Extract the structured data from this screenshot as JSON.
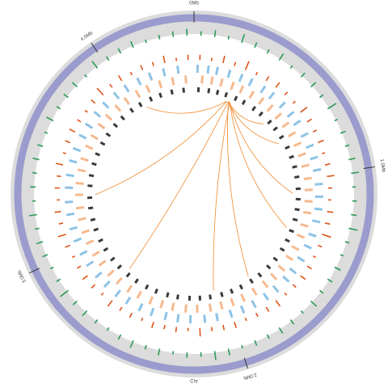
{
  "chart_data": {
    "type": "circos",
    "axis_label": "Chr",
    "xlim": [
      0,
      4.42
    ],
    "xticks": [
      {
        "value": 0,
        "label": "0Mb"
      },
      {
        "value": 1,
        "label": "1.0Mb"
      },
      {
        "value": 2,
        "label": "2.0Mb"
      },
      {
        "value": 3,
        "label": "3.0Mb"
      },
      {
        "value": 4,
        "label": "4.0Mb"
      }
    ],
    "ideogram_color": "#9b9ccd",
    "tracks": [
      {
        "kind": "histogram",
        "color": "#2e9a5a",
        "values": [
          0.4,
          0.6,
          0.3,
          0.8,
          0.5,
          0.4,
          0.7,
          0.3,
          0.5,
          0.6,
          0.4,
          0.9,
          0.3,
          0.5,
          0.4,
          0.6,
          0.7,
          0.3,
          0.4,
          0.5,
          0.8,
          0.4,
          0.3,
          0.6,
          0.5,
          0.4,
          0.7,
          0.3,
          0.5,
          0.6,
          0.4,
          0.5,
          0.3,
          0.6,
          0.8,
          0.4,
          0.5,
          0.3,
          0.6,
          0.4,
          0.7,
          0.5,
          0.3,
          0.4,
          0.6,
          0.5,
          0.9,
          0.4,
          0.3,
          0.5,
          0.6,
          0.4,
          0.7,
          0.3,
          0.5,
          0.4,
          0.6,
          0.5,
          0.3,
          0.7,
          0.4,
          0.5,
          0.6,
          0.3,
          0.8,
          0.4,
          0.5,
          0.6,
          0.3,
          0.4,
          0.5,
          0.6
        ]
      },
      {
        "kind": "histogram",
        "color": "#e0531a",
        "values": [
          0.5,
          0.3,
          0.7,
          0.4,
          0.9,
          0.3,
          0.5,
          0.6,
          0.4,
          0.3,
          0.8,
          0.5,
          0.4,
          0.6,
          0.3,
          0.5,
          0.7,
          0.4,
          0.3,
          0.6,
          0.5,
          0.9,
          0.4,
          0.3,
          0.5,
          0.6,
          0.4,
          0.3,
          0.7,
          0.5,
          0.4,
          0.3,
          0.6,
          0.5,
          0.4,
          0.8,
          0.3,
          0.5,
          0.4,
          0.6,
          0.3,
          0.5,
          0.4,
          0.7,
          0.3,
          0.5,
          0.6,
          0.4,
          0.3,
          0.5,
          0.8,
          0.4,
          0.6,
          0.3,
          0.5,
          0.4,
          0.7,
          0.3,
          0.5,
          0.6,
          0.4,
          0.3,
          0.5,
          0.9,
          0.4,
          0.6,
          0.3,
          0.5,
          0.4,
          0.7,
          0.3,
          0.5
        ]
      },
      {
        "kind": "tiles",
        "color": "#8ec3e6",
        "positions": [
          0.02,
          0.08,
          0.13,
          0.2,
          0.27,
          0.33,
          0.41,
          0.47,
          0.55,
          0.62,
          0.68,
          0.76,
          0.83,
          0.9,
          0.97,
          1.05,
          1.12,
          1.19,
          1.26,
          1.34,
          1.41,
          1.49,
          1.57,
          1.63,
          1.71,
          1.78,
          1.86,
          1.93,
          2.0,
          2.08,
          2.15,
          2.23,
          2.3,
          2.37,
          2.45,
          2.52,
          2.6,
          2.67,
          2.75,
          2.82,
          2.9,
          2.97,
          3.05,
          3.12,
          3.2,
          3.27,
          3.35,
          3.42,
          3.5,
          3.57,
          3.65,
          3.72,
          3.8,
          3.87,
          3.95,
          4.02,
          4.1,
          4.17,
          4.25,
          4.33
        ]
      },
      {
        "kind": "tiles",
        "color": "#f6b98e",
        "positions": [
          0.05,
          0.11,
          0.17,
          0.24,
          0.3,
          0.37,
          0.44,
          0.51,
          0.58,
          0.65,
          0.72,
          0.79,
          0.86,
          0.93,
          1.01,
          1.08,
          1.15,
          1.22,
          1.3,
          1.37,
          1.45,
          1.52,
          1.6,
          1.67,
          1.74,
          1.82,
          1.9,
          1.97,
          2.04,
          2.11,
          2.19,
          2.26,
          2.34,
          2.41,
          2.48,
          2.56,
          2.63,
          2.71,
          2.78,
          2.86,
          2.93,
          3.01,
          3.08,
          3.16,
          3.23,
          3.31,
          3.38,
          3.46,
          3.53,
          3.61,
          3.68,
          3.76,
          3.83,
          3.91,
          3.98,
          4.06,
          4.13,
          4.21,
          4.29,
          4.37
        ]
      },
      {
        "kind": "tiles",
        "color": "#3a3a3a",
        "positions": [
          0.03,
          0.1,
          0.16,
          0.22,
          0.29,
          0.35,
          0.43,
          0.49,
          0.57,
          0.63,
          0.7,
          0.78,
          0.85,
          0.92,
          0.99,
          1.07,
          1.14,
          1.21,
          1.28,
          1.36,
          1.43,
          1.5,
          1.58,
          1.65,
          1.73,
          1.8,
          1.88,
          1.95,
          2.02,
          2.1,
          2.17,
          2.24,
          2.32,
          2.39,
          2.47,
          2.54,
          2.62,
          2.69,
          2.77,
          2.84,
          2.92,
          2.99,
          3.07,
          3.14,
          3.22,
          3.29,
          3.37,
          3.44,
          3.52,
          3.59,
          3.67,
          3.74,
          3.82,
          3.89,
          3.97,
          4.04,
          4.12,
          4.19,
          4.27,
          4.35
        ]
      }
    ],
    "link_color": "#f08a2c",
    "links": [
      [
        0.25,
        0.55
      ],
      [
        0.25,
        0.73
      ],
      [
        0.26,
        1.1
      ],
      [
        0.26,
        1.35
      ],
      [
        0.25,
        1.8
      ],
      [
        0.26,
        2.07
      ],
      [
        0.25,
        2.71
      ],
      [
        0.24,
        3.31
      ],
      [
        0.24,
        4.07
      ]
    ]
  }
}
